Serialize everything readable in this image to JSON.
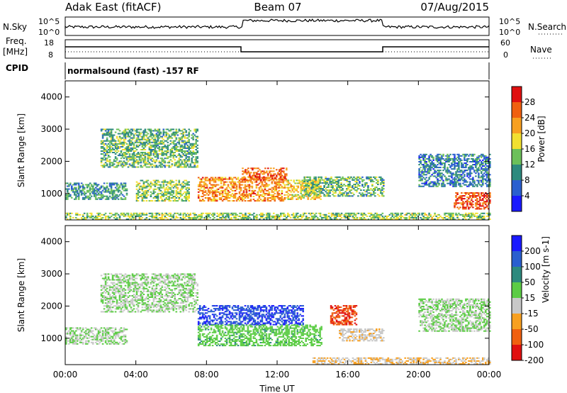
{
  "header": {
    "station": "Adak East (fitACF)",
    "beam": "Beam 07",
    "date": "07/Aug/2015"
  },
  "summary": {
    "nsky_label": "N.Sky",
    "nsky_ticks": [
      "10^5",
      "10^0"
    ],
    "nsearch_label": "N.Search",
    "nsearch_ticks": [
      "10^5",
      "10^0"
    ],
    "freq_label": "Freq.",
    "freq_unit": "[MHz]",
    "freq_ticks": [
      "18",
      "8"
    ],
    "nave_label": "Nave",
    "nave_ticks": [
      "60",
      "0"
    ],
    "cpid_label": "CPID",
    "cpid_text": "normalsound (fast) -157 RF"
  },
  "chart_data": [
    {
      "type": "heatmap",
      "name": "power",
      "ylabel": "Slant Range [km]",
      "xlabel": "",
      "x_ticks": [
        "00:00",
        "04:00",
        "08:00",
        "12:00",
        "16:00",
        "20:00",
        "00:00"
      ],
      "x_range_hours": [
        0,
        24
      ],
      "y_ticks": [
        1000,
        2000,
        3000,
        4000
      ],
      "ylim": [
        180,
        4500
      ],
      "colorbar": {
        "label": "Power [dB]",
        "ticks": [
          "4",
          "8",
          "12",
          "16",
          "20",
          "24",
          "28"
        ],
        "colors": [
          "#1a1aff",
          "#2a5fcf",
          "#2e8a7e",
          "#6cc05a",
          "#f2e030",
          "#f8a020",
          "#f06010",
          "#e01010"
        ],
        "range": [
          0,
          30
        ]
      },
      "echo_regions": [
        {
          "t0": 0.0,
          "t1": 3.5,
          "r0": 800,
          "r1": 1300,
          "value": 10
        },
        {
          "t0": 2.0,
          "t1": 7.5,
          "r0": 1800,
          "r1": 3000,
          "value": 12
        },
        {
          "t0": 4.0,
          "t1": 7.0,
          "r0": 750,
          "r1": 1400,
          "value": 14
        },
        {
          "t0": 7.5,
          "t1": 12.5,
          "r0": 750,
          "r1": 1500,
          "value": 22
        },
        {
          "t0": 10.0,
          "t1": 12.5,
          "r0": 1400,
          "r1": 1800,
          "value": 24
        },
        {
          "t0": 12.5,
          "t1": 14.5,
          "r0": 800,
          "r1": 1400,
          "value": 18
        },
        {
          "t0": 13.5,
          "t1": 18.0,
          "r0": 900,
          "r1": 1500,
          "value": 12
        },
        {
          "t0": 20.0,
          "t1": 24.0,
          "r0": 1200,
          "r1": 2200,
          "value": 8
        },
        {
          "t0": 22.0,
          "t1": 24.0,
          "r0": 500,
          "r1": 1000,
          "value": 26
        },
        {
          "t0": 0.0,
          "t1": 24.0,
          "r0": 180,
          "r1": 400,
          "value": 14
        }
      ]
    },
    {
      "type": "heatmap",
      "name": "velocity",
      "ylabel": "Slant Range [km]",
      "xlabel": "Time UT",
      "x_ticks": [
        "00:00",
        "04:00",
        "08:00",
        "12:00",
        "16:00",
        "20:00",
        "00:00"
      ],
      "x_range_hours": [
        0,
        24
      ],
      "y_ticks": [
        1000,
        2000,
        3000,
        4000
      ],
      "ylim": [
        180,
        4500
      ],
      "colorbar": {
        "label": "Velocity [m s-1]",
        "ticks": [
          "200",
          "100",
          "50",
          "15",
          "-15",
          "-50",
          "-100",
          "-200"
        ],
        "colors": [
          "#1a1aff",
          "#2a5fcf",
          "#2e8a7e",
          "#5ccc45",
          "#c8c8c8",
          "#f8a020",
          "#f06010",
          "#e01010"
        ],
        "range": [
          -250,
          250
        ]
      },
      "echo_regions": [
        {
          "t0": 0.0,
          "t1": 3.5,
          "r0": 800,
          "r1": 1300,
          "value": 0
        },
        {
          "t0": 2.0,
          "t1": 7.5,
          "r0": 1800,
          "r1": 3000,
          "value": 0
        },
        {
          "t0": 7.5,
          "t1": 13.5,
          "r0": 1400,
          "r1": 2000,
          "value": 180
        },
        {
          "t0": 7.5,
          "t1": 14.5,
          "r0": 750,
          "r1": 1400,
          "value": 40
        },
        {
          "t0": 15.0,
          "t1": 16.5,
          "r0": 1400,
          "r1": 2000,
          "value": -180
        },
        {
          "t0": 15.5,
          "t1": 18.0,
          "r0": 900,
          "r1": 1300,
          "value": -45
        },
        {
          "t0": 20.0,
          "t1": 24.0,
          "r0": 1200,
          "r1": 2200,
          "value": 0
        },
        {
          "t0": 14.0,
          "t1": 24.0,
          "r0": 180,
          "r1": 400,
          "value": -60
        }
      ]
    }
  ]
}
